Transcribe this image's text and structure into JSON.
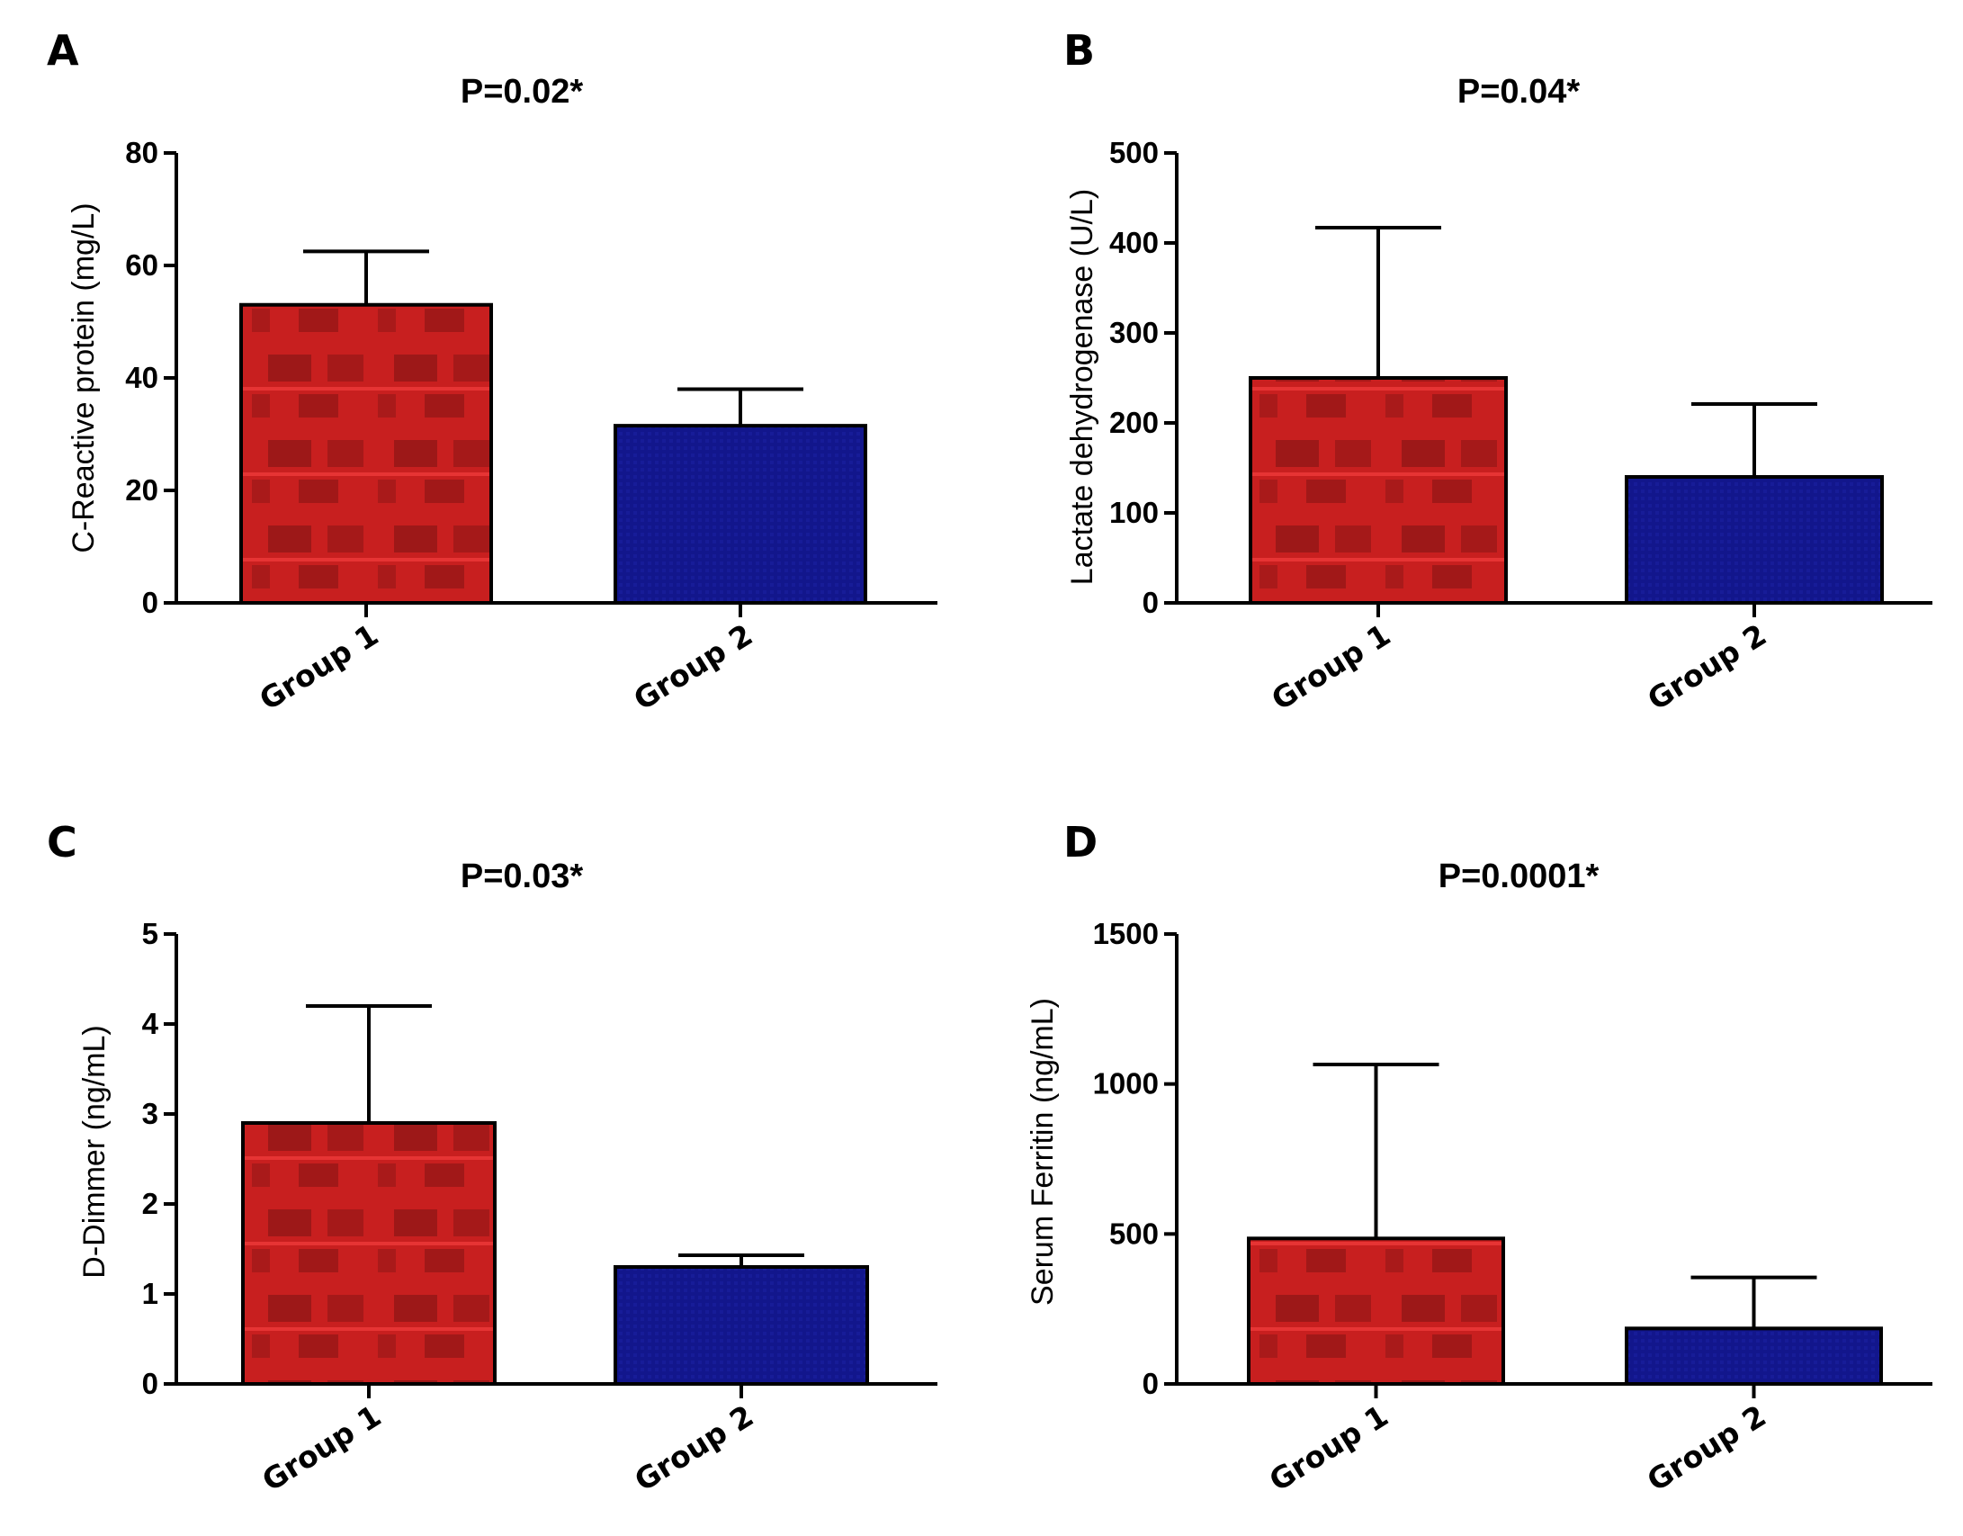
{
  "chart_data": [
    {
      "type": "bar",
      "panel_label": "A",
      "title": "P=0.02*",
      "xlabel": "",
      "ylabel": "C-Reactive protein (mg/L)",
      "ylim": [
        0,
        80
      ],
      "yticks": [
        0,
        20,
        40,
        60,
        80
      ],
      "categories": [
        "Group 1",
        "Group 2"
      ],
      "values": [
        53,
        31.5
      ],
      "error_upper": [
        62.5,
        38
      ],
      "colors": [
        "#c41e1e",
        "#10148a"
      ]
    },
    {
      "type": "bar",
      "panel_label": "B",
      "title": "P=0.04*",
      "xlabel": "",
      "ylabel": "Lactate dehydrogenase (U/L)",
      "ylim": [
        0,
        500
      ],
      "yticks": [
        0,
        100,
        200,
        300,
        400,
        500
      ],
      "categories": [
        "Group 1",
        "Group 2"
      ],
      "values": [
        250,
        140
      ],
      "error_upper": [
        417,
        221
      ],
      "colors": [
        "#c41e1e",
        "#10148a"
      ]
    },
    {
      "type": "bar",
      "panel_label": "C",
      "title": "P=0.03*",
      "xlabel": "",
      "ylabel": "D-Dimmer (ng/mL)",
      "ylim": [
        0,
        5
      ],
      "yticks": [
        0,
        1,
        2,
        3,
        4,
        5
      ],
      "categories": [
        "Group 1",
        "Group 2"
      ],
      "values": [
        2.9,
        1.3
      ],
      "error_upper": [
        4.2,
        1.43
      ],
      "colors": [
        "#c41e1e",
        "#10148a"
      ]
    },
    {
      "type": "bar",
      "panel_label": "D",
      "title": "P=0.0001*",
      "xlabel": "",
      "ylabel": "Serum Ferritin (ng/mL)",
      "ylim": [
        0,
        1500
      ],
      "yticks": [
        0,
        500,
        1000,
        1500
      ],
      "categories": [
        "Group 1",
        "Group 2"
      ],
      "values": [
        485,
        185
      ],
      "error_upper": [
        1065,
        355
      ],
      "colors": [
        "#c41e1e",
        "#10148a"
      ]
    }
  ]
}
